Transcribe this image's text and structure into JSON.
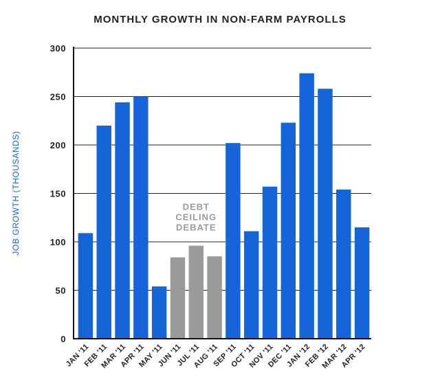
{
  "chart_data": {
    "type": "bar",
    "title": "MONTHLY GROWTH IN NON-FARM PAYROLLS",
    "xlabel": "",
    "ylabel": "JOB GROWTH (THOUSANDS)",
    "ylim": [
      0,
      300
    ],
    "yticks": [
      "0",
      "50",
      "100",
      "150",
      "200",
      "250",
      "300"
    ],
    "grid": true,
    "categories": [
      "JAN '11",
      "FEB '11",
      "MAR '11",
      "APR '11",
      "MAY '11",
      "JUN '11",
      "JUL '11",
      "AUG '11",
      "SEP '11",
      "OCT '11",
      "NOV '11",
      "DEC '11",
      "JAN '12",
      "FEB '12",
      "MAR '12",
      "APR '12"
    ],
    "values": [
      109,
      220,
      244,
      250,
      54,
      84,
      96,
      85,
      202,
      111,
      157,
      223,
      274,
      258,
      154,
      115
    ],
    "highlighted": [
      "JUN '11",
      "JUL '11",
      "AUG '11"
    ],
    "annotation": [
      "DEBT",
      "CEILING",
      "DEBATE"
    ],
    "colors": {
      "bar": "#1565d8",
      "highlight": "#9a9a9a",
      "grid": "#222222"
    }
  }
}
